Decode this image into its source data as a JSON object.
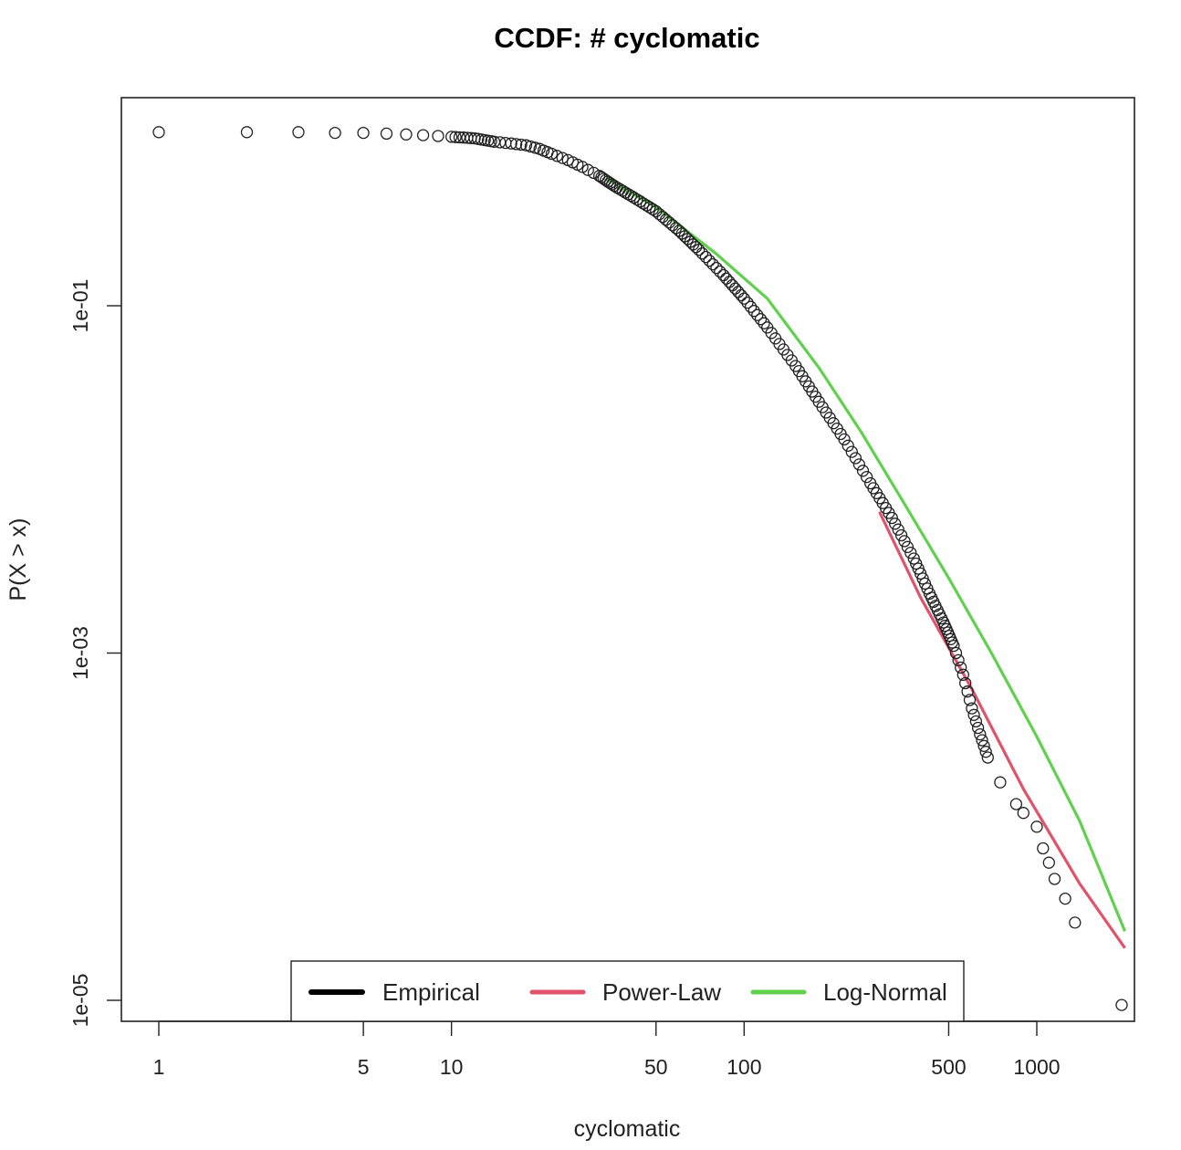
{
  "chart_data": {
    "type": "scatter",
    "title": "CCDF: # cyclomatic",
    "xlabel": "cyclomatic",
    "ylabel": "P(X > x)",
    "xscale": "log",
    "yscale": "log",
    "xlim": [
      0.87,
      2000
    ],
    "ylim": [
      5e-06,
      0.6
    ],
    "x_ticks": [
      1,
      5,
      10,
      50,
      100,
      500,
      1000
    ],
    "x_tick_labels": [
      "1",
      "5",
      "10",
      "50",
      "100",
      "500",
      "1000"
    ],
    "y_ticks": [
      0.1,
      0.001,
      1e-05
    ],
    "y_tick_labels": [
      "1e-01",
      "1e-03",
      "1e-05"
    ],
    "grid": false,
    "legend_position": "bottom-center",
    "legend": [
      {
        "label": "Empirical",
        "color": "#000000"
      },
      {
        "label": "Power-Law",
        "color": "#DF536B"
      },
      {
        "label": "Log-Normal",
        "color": "#61D04F"
      }
    ],
    "empirical_points": [
      [
        1,
        1.0
      ],
      [
        2,
        1.0
      ],
      [
        3,
        1.0
      ],
      [
        4,
        0.99
      ],
      [
        5,
        0.99
      ],
      [
        6,
        0.98
      ],
      [
        7,
        0.97
      ],
      [
        8,
        0.96
      ],
      [
        9,
        0.95
      ],
      [
        10,
        0.94
      ],
      [
        11,
        0.93
      ],
      [
        12,
        0.92
      ],
      [
        13,
        0.9
      ],
      [
        14,
        0.88
      ],
      [
        16,
        0.86
      ],
      [
        18,
        0.84
      ],
      [
        20,
        0.8
      ],
      [
        22,
        0.75
      ],
      [
        25,
        0.69
      ],
      [
        28,
        0.63
      ],
      [
        32,
        0.56
      ],
      [
        36,
        0.49
      ],
      [
        42,
        0.42
      ],
      [
        50,
        0.35
      ],
      [
        60,
        0.27
      ],
      [
        70,
        0.21
      ],
      [
        85,
        0.15
      ],
      [
        100,
        0.11
      ],
      [
        120,
        0.075
      ],
      [
        150,
        0.045
      ],
      [
        180,
        0.028
      ],
      [
        220,
        0.017
      ],
      [
        270,
        0.0095
      ],
      [
        320,
        0.006
      ],
      [
        380,
        0.0035
      ],
      [
        430,
        0.0022
      ],
      [
        480,
        0.0015
      ],
      [
        520,
        0.0011
      ],
      [
        560,
        0.00075
      ],
      [
        600,
        0.00048
      ],
      [
        640,
        0.00034
      ],
      [
        680,
        0.00025
      ],
      [
        750,
        0.00018
      ],
      [
        850,
        0.000135
      ],
      [
        900,
        0.00012
      ],
      [
        1000,
        0.0001
      ],
      [
        1050,
        7.5e-05
      ],
      [
        1100,
        6.2e-05
      ],
      [
        1150,
        5e-05
      ],
      [
        1250,
        3.85e-05
      ],
      [
        1350,
        2.8e-05
      ],
      [
        1950,
        9.4e-06
      ]
    ],
    "series": [
      {
        "name": "Power-Law",
        "color": "#DF536B",
        "x": [
          290,
          400,
          600,
          900,
          1400,
          2000
        ],
        "y": [
          0.0065,
          0.0021,
          0.00062,
          0.000165,
          4.7e-05,
          2e-05
        ]
      },
      {
        "name": "Log-Normal",
        "color": "#61D04F",
        "x": [
          34,
          50,
          80,
          120,
          180,
          250,
          350,
          500,
          700,
          1000,
          1400,
          2000
        ],
        "y": [
          0.54,
          0.37,
          0.2,
          0.11,
          0.044,
          0.019,
          0.0074,
          0.0027,
          0.001,
          0.00033,
          0.000108,
          2.5e-05
        ]
      }
    ]
  }
}
